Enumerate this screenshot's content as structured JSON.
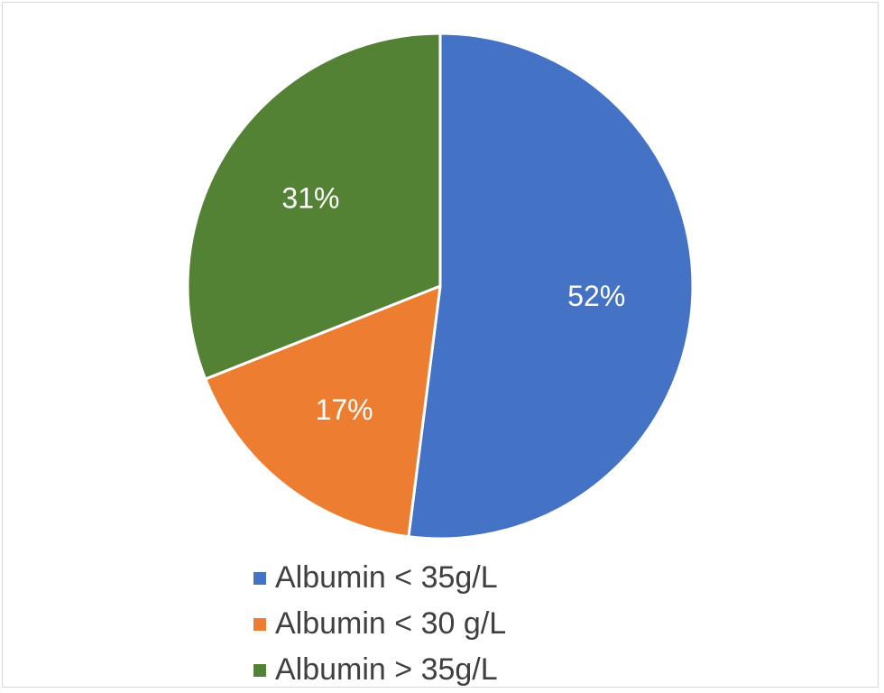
{
  "chart_data": {
    "type": "pie",
    "categories": [
      "Albumin < 35g/L",
      "Albumin < 30 g/L",
      "Albumin > 35g/L"
    ],
    "values": [
      52,
      17,
      31
    ],
    "data_labels": [
      "52%",
      "17%",
      "31%"
    ],
    "colors": [
      "#4472c4",
      "#ed7d31",
      "#548235"
    ],
    "start_angle_deg": 0,
    "direction": "clockwise",
    "legend_position": "bottom",
    "title": ""
  }
}
